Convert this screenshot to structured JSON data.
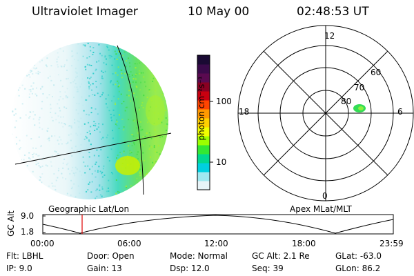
{
  "header": {
    "instrument": "Ultraviolet Imager",
    "date": "10 May 00",
    "time": "02:48:53 UT"
  },
  "colorbar": {
    "unit_label": "photon cm⁻²s⁻¹",
    "ticks": [
      "100",
      "10"
    ],
    "colors": [
      "#1a0a33",
      "#3a0a4a",
      "#5a0a50",
      "#8a0022",
      "#c80010",
      "#ff4400",
      "#ff9900",
      "#ffd000",
      "#f0ff00",
      "#9cff00",
      "#33e833",
      "#00d890",
      "#00d0e0",
      "#a0e8f0",
      "#e8f4f8"
    ]
  },
  "panels": {
    "left_label": "Geographic Lat/Lon",
    "right_label": "Apex MLat/MLT"
  },
  "polar": {
    "mlt_labels": [
      "12",
      "18",
      "6",
      "0"
    ],
    "lat_labels": [
      "60",
      "70",
      "80"
    ]
  },
  "alt_plot": {
    "ylabel": "GC Alt",
    "yticks": [
      "9.0",
      "1.8"
    ],
    "xticks": [
      "00:00",
      "06:00",
      "12:00",
      "18:00",
      "23:59"
    ]
  },
  "info": {
    "flt": "Flt: LBHL",
    "ip": "IP:  9.0",
    "door": "Door: Open",
    "gain": "Gain: 13",
    "mode": "Mode: Normal",
    "dsp": "Dsp:    12.0",
    "gcalt": "GC Alt: 2.1 Re",
    "seq": "Seq: 39",
    "glat": "GLat:  -63.0",
    "glon": "GLon:  86.2"
  }
}
